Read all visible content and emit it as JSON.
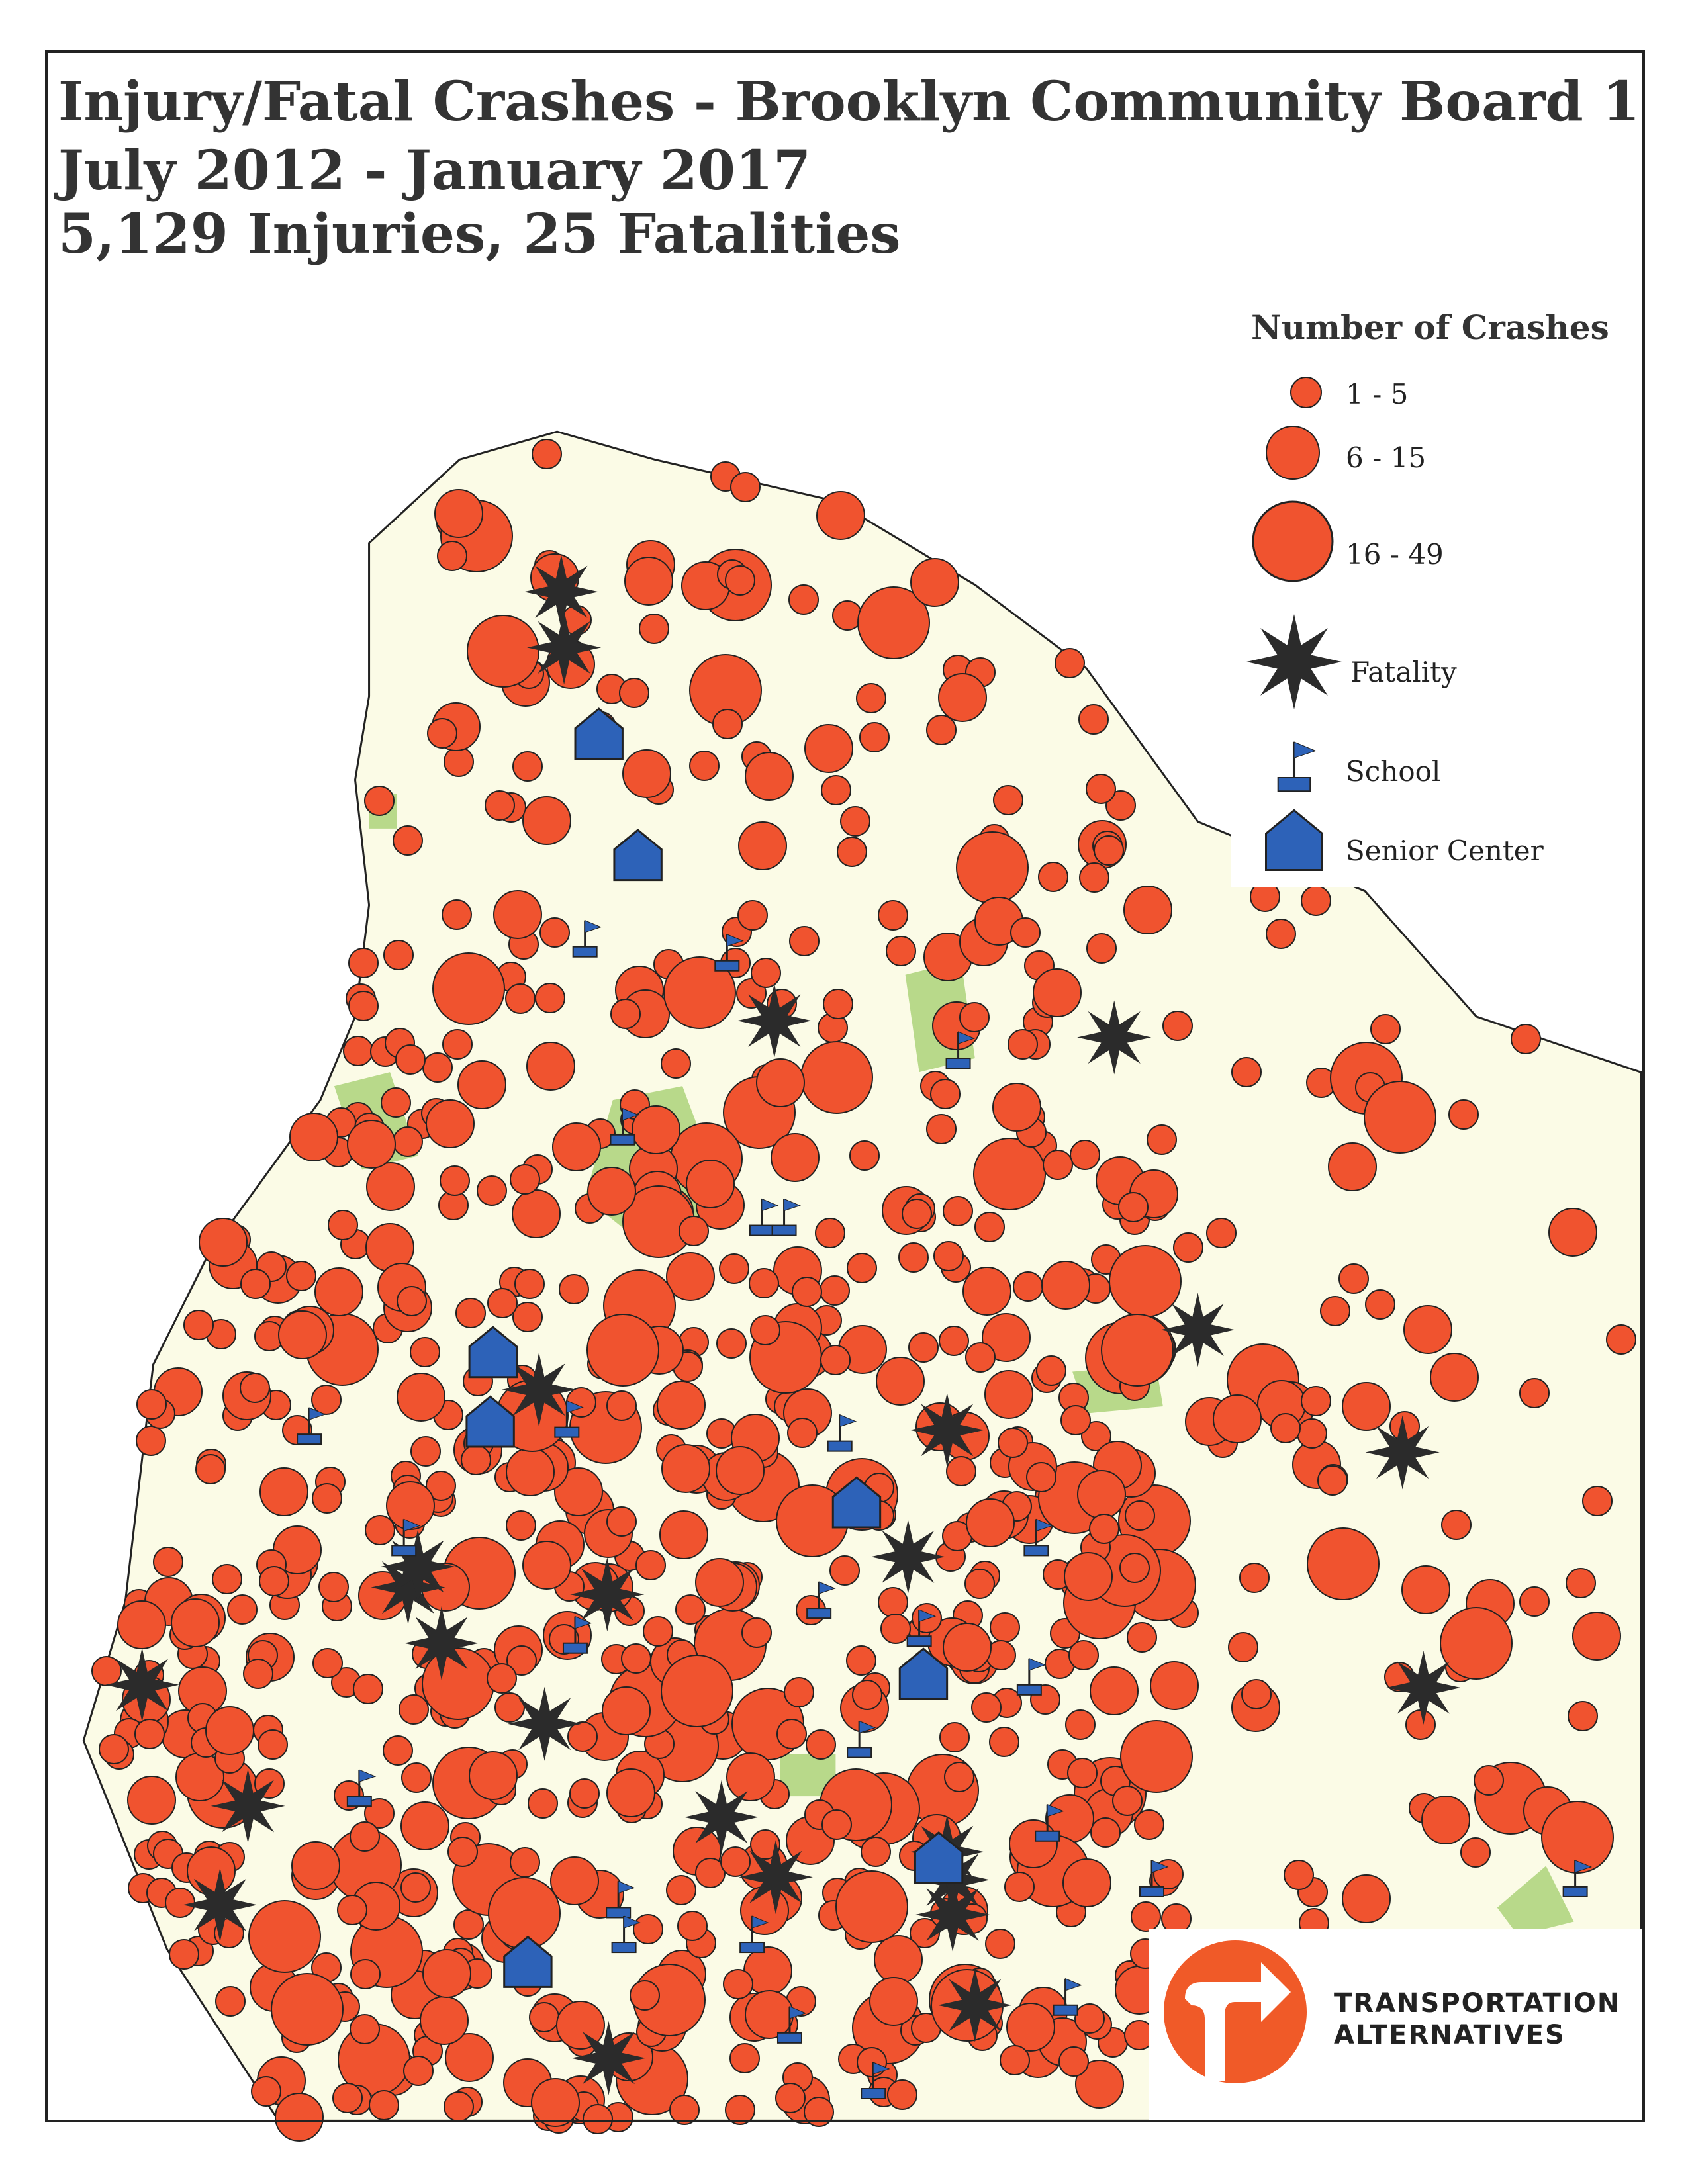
{
  "title": {
    "line1": "Injury/Fatal Crashes - Brooklyn Community Board 1",
    "line2": "July 2012 - January 2017",
    "line3": "5,129 Injuries, 25 Fatalities"
  },
  "legend": {
    "heading": "Number of Crashes",
    "items": [
      {
        "label": "1 - 5",
        "symbol": "small-circle"
      },
      {
        "label": "6 - 15",
        "symbol": "medium-circle"
      },
      {
        "label": "16 - 49",
        "symbol": "large-circle"
      },
      {
        "label": "Fatality",
        "symbol": "star-icon"
      },
      {
        "label": "School",
        "symbol": "flag-icon"
      },
      {
        "label": "Senior Center",
        "symbol": "house-icon"
      }
    ]
  },
  "logo": {
    "line1": "TRANSPORTATION",
    "line2": "ALTERNATIVES"
  },
  "colors": {
    "crash": "#f0532f",
    "fatality": "#2b2b2b",
    "marker_blue": "#2d62b8",
    "land": "#fbfbe6",
    "park": "#b8d98a",
    "logo": "#f05a28"
  }
}
